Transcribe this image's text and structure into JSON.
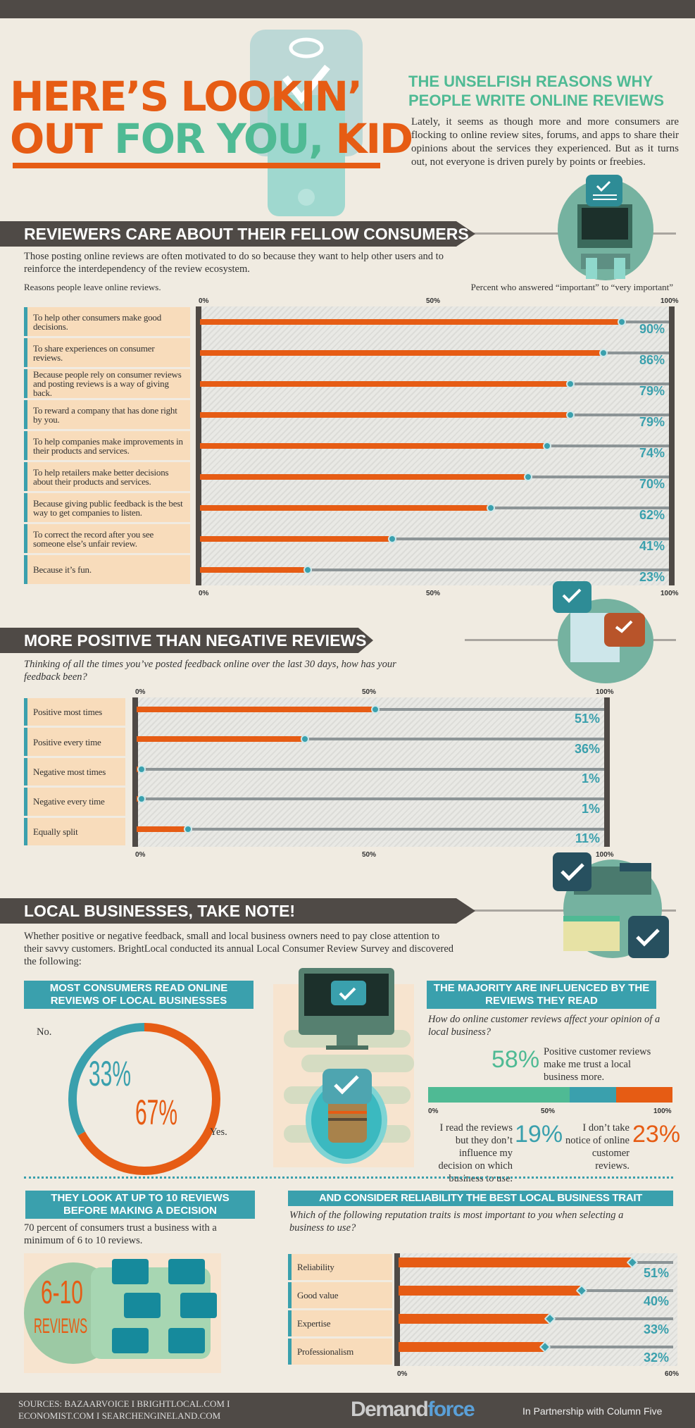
{
  "header": {
    "title_line1": "HERE’S LOOKIN’",
    "title_line2a": "OUT ",
    "title_line2b": "FOR YOU, ",
    "title_line2c": "KID",
    "subtitle": "THE UNSELFISH REASONS WHY PEOPLE WRITE ONLINE REVIEWS",
    "intro": "Lately, it seems as though more and more consumers are flocking to online review sites, forums, and apps to share their opinions about the services they experienced. But as it turns out, not everyone is driven purely by points or freebies."
  },
  "section1": {
    "heading": "REVIEWERS CARE ABOUT THEIR FELLOW CONSUMERS",
    "text": "Those posting online reviews are often motivated to do so because they want to help other users and to reinforce the interdependency of the review ecosystem.",
    "left_caption": "Reasons people leave online reviews.",
    "right_caption": "Percent who answered “important” to “very important”"
  },
  "section2": {
    "heading": "MORE POSITIVE THAN NEGATIVE REVIEWS",
    "question": "Thinking of all the times you’ve posted feedback online over the last 30 days, how has your feedback been?"
  },
  "section3": {
    "heading": "LOCAL BUSINESSES, TAKE NOTE!",
    "text": "Whether positive or negative feedback, small and local business owners need to pay close attention to their savvy customers. BrightLocal conducted its annual Local Consumer Review Survey and discovered the following:",
    "panel1": {
      "heading": "MOST CONSUMERS READ ONLINE REVIEWS OF LOCAL BUSINESSES",
      "no_label": "No.",
      "yes_label": "Yes.",
      "no_pct": "33%",
      "yes_pct": "67%"
    },
    "panel2": {
      "heading": "THE MAJORITY ARE INFLUENCED BY THE REVIEWS THEY READ",
      "question": "How do online customer reviews affect your opinion of a local business?",
      "a_pct": "58%",
      "a_text": "Positive customer reviews make me trust a local business more.",
      "b_pct": "19%",
      "b_text": "I read the reviews but they don’t influence my decision on which business to use.",
      "c_pct": "23%",
      "c_text": "I don’t take notice of online customer reviews.",
      "ticks": [
        "0%",
        "50%",
        "100%"
      ]
    },
    "panel3": {
      "heading": "THEY LOOK AT UP TO 10 REVIEWS BEFORE MAKING A DECISION",
      "text": "70 percent of consumers trust a business with a minimum of 6 to 10 reviews.",
      "badge_num": "6-10",
      "badge_word": "REVIEWS"
    },
    "panel4": {
      "heading": "AND CONSIDER RELIABILITY THE BEST LOCAL BUSINESS TRAIT",
      "question": "Which of the following reputation traits is most important to you when selecting a business to use?"
    }
  },
  "footer": {
    "sources": "SOURCES: BAZAARVOICE I BRIGHTLOCAL.COM I ECONOMIST.COM I SEARCHENGINELAND.COM",
    "brand_a": "Demand",
    "brand_b": "force",
    "partner": "In Partnership with Column Five"
  },
  "colors": {
    "orange": "#e65c14",
    "teal": "#3aa0ad",
    "green": "#4fba94",
    "dark": "#4f4a46",
    "label_bg": "#f8dcbb"
  },
  "chart_data": [
    {
      "type": "bar",
      "orientation": "horizontal",
      "xlim": [
        0,
        100
      ],
      "ticks": [
        "0%",
        "50%",
        "100%"
      ],
      "categories": [
        "To help other consumers make good decisions.",
        "To share experiences on consumer reviews.",
        "Because people rely on consumer reviews and posting reviews is a way of giving back.",
        "To reward a company that has done right by you.",
        "To help companies make improvements in their products and services.",
        "To help retailers make better decisions about their products and services.",
        "Because giving public feedback is the best way to get companies to listen.",
        "To correct the record after you see someone else’s unfair review.",
        "Because it’s fun."
      ],
      "values": [
        90,
        86,
        79,
        79,
        74,
        70,
        62,
        41,
        23
      ]
    },
    {
      "type": "bar",
      "orientation": "horizontal",
      "xlim": [
        0,
        100
      ],
      "ticks": [
        "0%",
        "50%",
        "100%"
      ],
      "categories": [
        "Positive most times",
        "Positive every time",
        "Negative most times",
        "Negative every time",
        "Equally split"
      ],
      "values": [
        51,
        36,
        1,
        1,
        11
      ]
    },
    {
      "type": "pie",
      "categories": [
        "No.",
        "Yes."
      ],
      "values": [
        33,
        67
      ]
    },
    {
      "type": "bar",
      "orientation": "horizontal",
      "stacked": true,
      "categories": [
        "Positive customer reviews make me trust a local business more.",
        "I read the reviews but they don’t influence my decision on which business to use.",
        "I don’t take notice of online customer reviews."
      ],
      "values": [
        58,
        19,
        23
      ]
    },
    {
      "type": "bar",
      "orientation": "horizontal",
      "xlim": [
        0,
        60
      ],
      "ticks": [
        "0%",
        "60%"
      ],
      "categories": [
        "Reliability",
        "Good value",
        "Expertise",
        "Professionalism"
      ],
      "values": [
        51,
        40,
        33,
        32
      ]
    }
  ]
}
